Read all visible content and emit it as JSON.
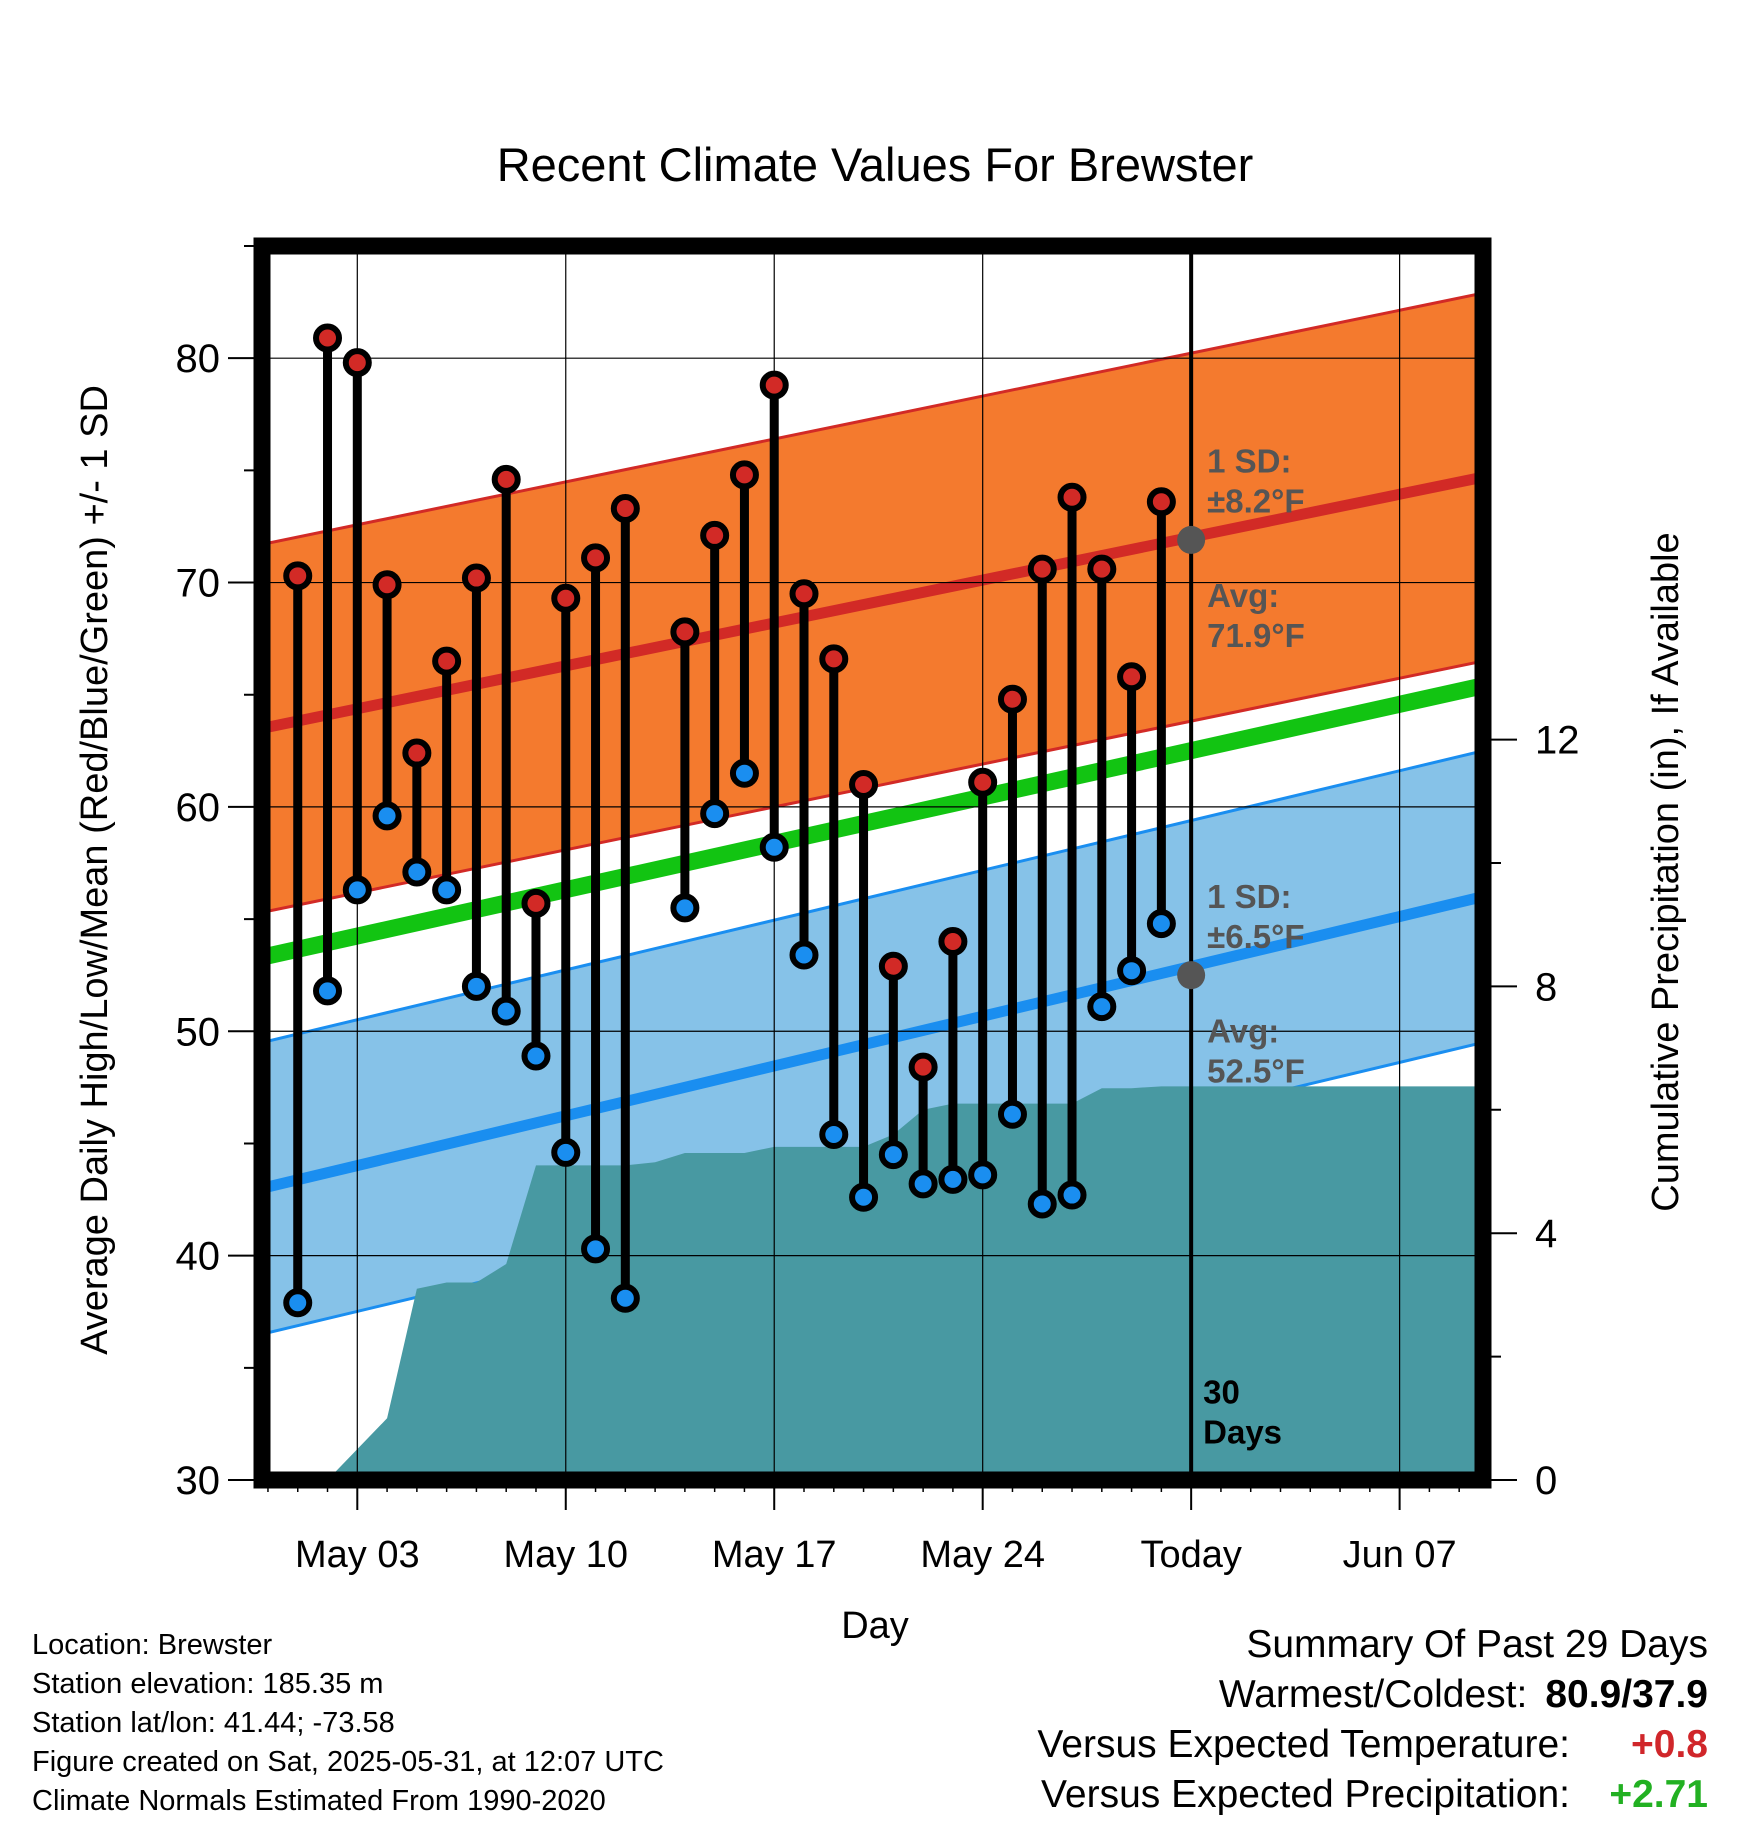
{
  "chart_data": {
    "type": "line",
    "title": "Recent Climate Values For Brewster",
    "xlabel": "Day",
    "ylabel": "Average Daily High/Low/Mean (Red/Blue/Green) +/- 1 SD",
    "y2label": "Cumulative Precipitation (in), If Available",
    "ylim": [
      30,
      85
    ],
    "y2lim": [
      0,
      20
    ],
    "y_ticks": [
      "30",
      "40",
      "50",
      "60",
      "70",
      "80"
    ],
    "y2_ticks": [
      "0",
      "4",
      "8",
      "12"
    ],
    "x_ticks": [
      "May 03",
      "May 10",
      "May 17",
      "May 24",
      "Today",
      "Jun 07"
    ],
    "x_tick_days": [
      3,
      10,
      17,
      24,
      31,
      38
    ],
    "xlim": [
      -0.2,
      40.8
    ],
    "today_day": 31,
    "today_label": "30\nDays",
    "grid": true,
    "colors": {
      "high_band": "#f47a2e",
      "high_line": "#d22a26",
      "low_band": "#86c2e8",
      "low_line": "#1a8ef0",
      "mean_line": "#12c412",
      "precip": "#4899a2",
      "marker_dot": "#555555",
      "annotation": "#555555",
      "warm_value": "#d0262a",
      "precip_value": "#22b022"
    },
    "normals": {
      "high": {
        "start": 63.5,
        "end": 74.7,
        "sd": 8.2
      },
      "low": {
        "start": 43.0,
        "end": 56.0,
        "sd": 6.5
      },
      "mean": {
        "start": 53.3,
        "end": 65.4
      }
    },
    "annotations": {
      "high_sd": "1 SD:\n±8.2°F",
      "high_avg": "Avg:\n71.9°F",
      "low_sd": "1 SD:\n±6.5°F",
      "low_avg": "Avg:\n52.5°F",
      "high_avg_value": 71.9,
      "low_avg_value": 52.5
    },
    "daily": [
      {
        "day": 1,
        "high": 70.3,
        "low": 37.9
      },
      {
        "day": 2,
        "high": 80.9,
        "low": 51.8
      },
      {
        "day": 3,
        "high": 79.8,
        "low": 56.3
      },
      {
        "day": 4,
        "high": 69.9,
        "low": 59.6
      },
      {
        "day": 5,
        "high": 62.4,
        "low": 57.1
      },
      {
        "day": 6,
        "high": 66.5,
        "low": 56.3
      },
      {
        "day": 7,
        "high": 70.2,
        "low": 52.0
      },
      {
        "day": 8,
        "high": 74.6,
        "low": 50.9
      },
      {
        "day": 9,
        "high": 55.7,
        "low": 48.9
      },
      {
        "day": 10,
        "high": 69.3,
        "low": 44.6
      },
      {
        "day": 11,
        "high": 71.1,
        "low": 40.3
      },
      {
        "day": 12,
        "high": 73.3,
        "low": 38.1
      },
      {
        "day": 14,
        "high": 67.8,
        "low": 55.5
      },
      {
        "day": 15,
        "high": 72.1,
        "low": 59.7
      },
      {
        "day": 16,
        "high": 74.8,
        "low": 61.5
      },
      {
        "day": 17,
        "high": 78.8,
        "low": 58.2
      },
      {
        "day": 18,
        "high": 69.5,
        "low": 53.4
      },
      {
        "day": 19,
        "high": 66.6,
        "low": 45.4
      },
      {
        "day": 20,
        "high": 61.0,
        "low": 42.6
      },
      {
        "day": 21,
        "high": 52.9,
        "low": 44.5
      },
      {
        "day": 22,
        "high": 48.4,
        "low": 43.2
      },
      {
        "day": 23,
        "high": 54.0,
        "low": 43.4
      },
      {
        "day": 24,
        "high": 61.1,
        "low": 43.6
      },
      {
        "day": 25,
        "high": 64.8,
        "low": 46.3
      },
      {
        "day": 26,
        "high": 70.6,
        "low": 42.3
      },
      {
        "day": 27,
        "high": 73.8,
        "low": 42.7
      },
      {
        "day": 28,
        "high": 70.6,
        "low": 51.1
      },
      {
        "day": 29,
        "high": 65.8,
        "low": 52.7
      },
      {
        "day": 30,
        "high": 73.6,
        "low": 54.8
      }
    ],
    "precip_cumulative": [
      {
        "day": 0.0,
        "value": 0.0
      },
      {
        "day": 1.0,
        "value": 0.0
      },
      {
        "day": 2.0,
        "value": 0.0
      },
      {
        "day": 3.0,
        "value": 0.5
      },
      {
        "day": 4.0,
        "value": 1.0
      },
      {
        "day": 5.0,
        "value": 3.1
      },
      {
        "day": 6.0,
        "value": 3.2
      },
      {
        "day": 7.0,
        "value": 3.2
      },
      {
        "day": 8.0,
        "value": 3.5
      },
      {
        "day": 9.0,
        "value": 5.1
      },
      {
        "day": 10.0,
        "value": 5.1
      },
      {
        "day": 11.0,
        "value": 5.1
      },
      {
        "day": 12.0,
        "value": 5.1
      },
      {
        "day": 13.0,
        "value": 5.15
      },
      {
        "day": 14.0,
        "value": 5.3
      },
      {
        "day": 15.0,
        "value": 5.3
      },
      {
        "day": 16.0,
        "value": 5.3
      },
      {
        "day": 17.0,
        "value": 5.4
      },
      {
        "day": 18.0,
        "value": 5.4
      },
      {
        "day": 19.0,
        "value": 5.4
      },
      {
        "day": 20.0,
        "value": 5.4
      },
      {
        "day": 21.0,
        "value": 5.6
      },
      {
        "day": 22.0,
        "value": 6.0
      },
      {
        "day": 23.0,
        "value": 6.1
      },
      {
        "day": 24.0,
        "value": 6.1
      },
      {
        "day": 25.0,
        "value": 6.1
      },
      {
        "day": 26.0,
        "value": 6.1
      },
      {
        "day": 27.0,
        "value": 6.1
      },
      {
        "day": 28.0,
        "value": 6.35
      },
      {
        "day": 29.0,
        "value": 6.35
      },
      {
        "day": 30.0,
        "value": 6.38
      },
      {
        "day": 31.0,
        "value": 6.38
      },
      {
        "day": 40.8,
        "value": 6.38
      }
    ]
  },
  "footer": {
    "location": "Location: Brewster",
    "elevation": "Station elevation: 185.35 m",
    "latlon": "Station lat/lon: 41.44; -73.58",
    "created": "Figure created on Sat, 2025-05-31, at 12:07 UTC",
    "normals": "Climate Normals Estimated From 1990-2020"
  },
  "summary": {
    "title": "Summary Of Past 29 Days",
    "warm_cold_label": "Warmest/Coldest:",
    "warm_cold_value": "80.9/37.9",
    "temp_label": "Versus Expected Temperature:",
    "temp_value": "+0.8",
    "precip_label": "Versus Expected Precipitation:",
    "precip_value": "+2.71"
  }
}
